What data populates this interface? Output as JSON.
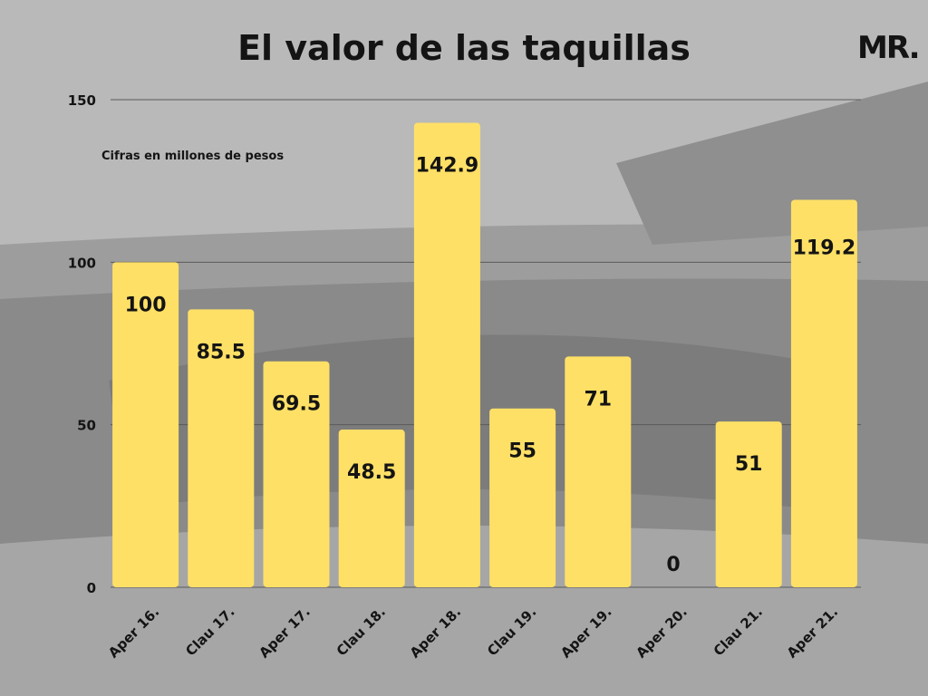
{
  "header": {
    "title": "El valor de las taquillas",
    "logo_text": "MR."
  },
  "colors": {
    "bar": "#ffe066",
    "text": "#141414",
    "background": "#b9b9b9"
  },
  "chart_data": {
    "type": "bar",
    "title": "El valor de las taquillas",
    "subtitle": "Cifras en millones de pesos",
    "categories": [
      "Aper 16.",
      "Clau 17.",
      "Aper 17.",
      "Clau 18.",
      "Aper 18.",
      "Clau 19.",
      "Aper 19.",
      "Aper 20.",
      "Clau 21.",
      "Aper 21."
    ],
    "values": [
      100,
      85.5,
      69.5,
      48.5,
      142.9,
      55,
      71,
      0,
      51,
      119.2
    ],
    "data_labels": [
      "100",
      "85.5",
      "69.5",
      "48.5",
      "142.9",
      "55",
      "71",
      "0",
      "51",
      "119.2"
    ],
    "yticks": [
      "0",
      "50",
      "100",
      "150"
    ],
    "ylim": [
      0,
      150
    ],
    "grid": true,
    "legend": "none"
  }
}
